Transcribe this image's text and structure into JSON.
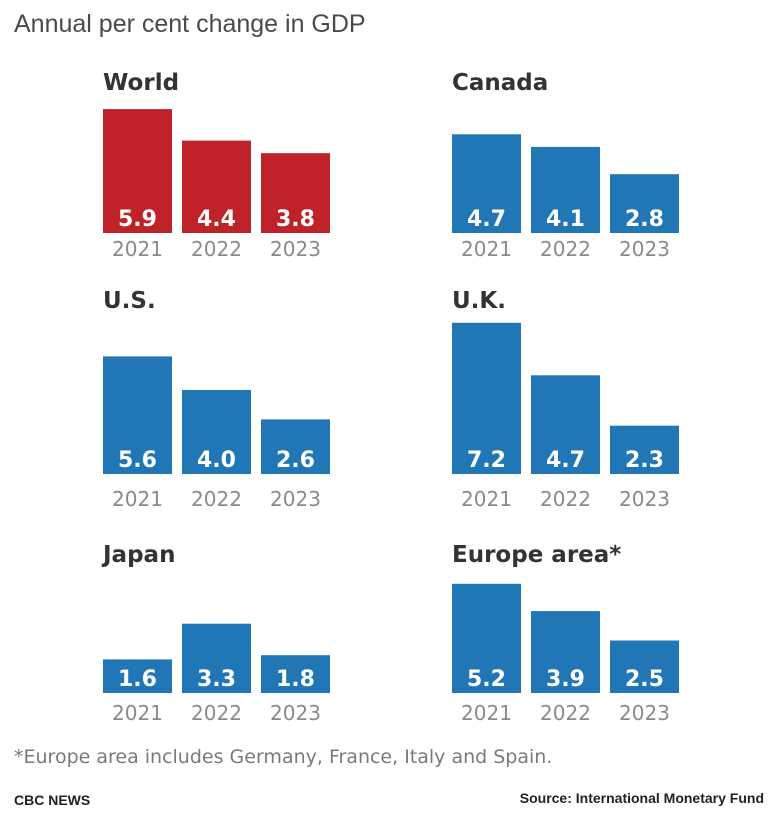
{
  "title": "Annual per cent change in GDP",
  "footnote": "*Europe area includes Germany, France, Italy and Spain.",
  "brand": "CBC NEWS",
  "source": "Source: International Monetary Fund",
  "colors": {
    "world": "#c0222a",
    "country": "#2176b5"
  },
  "chart_data": [
    {
      "type": "bar",
      "title": "World",
      "categories": [
        "2021",
        "2022",
        "2023"
      ],
      "values": [
        5.9,
        4.4,
        3.8
      ],
      "color": "#c0222a"
    },
    {
      "type": "bar",
      "title": "Canada",
      "categories": [
        "2021",
        "2022",
        "2023"
      ],
      "values": [
        4.7,
        4.1,
        2.8
      ],
      "color": "#2176b5"
    },
    {
      "type": "bar",
      "title": "U.S.",
      "categories": [
        "2021",
        "2022",
        "2023"
      ],
      "values": [
        5.6,
        4.0,
        2.6
      ],
      "color": "#2176b5"
    },
    {
      "type": "bar",
      "title": "U.K.",
      "categories": [
        "2021",
        "2022",
        "2023"
      ],
      "values": [
        7.2,
        4.7,
        2.3
      ],
      "color": "#2176b5"
    },
    {
      "type": "bar",
      "title": "Japan",
      "categories": [
        "2021",
        "2022",
        "2023"
      ],
      "values": [
        1.6,
        3.3,
        1.8
      ],
      "color": "#2176b5"
    },
    {
      "type": "bar",
      "title": "Europe area*",
      "categories": [
        "2021",
        "2022",
        "2023"
      ],
      "values": [
        5.2,
        3.9,
        2.5
      ],
      "color": "#2176b5"
    }
  ]
}
